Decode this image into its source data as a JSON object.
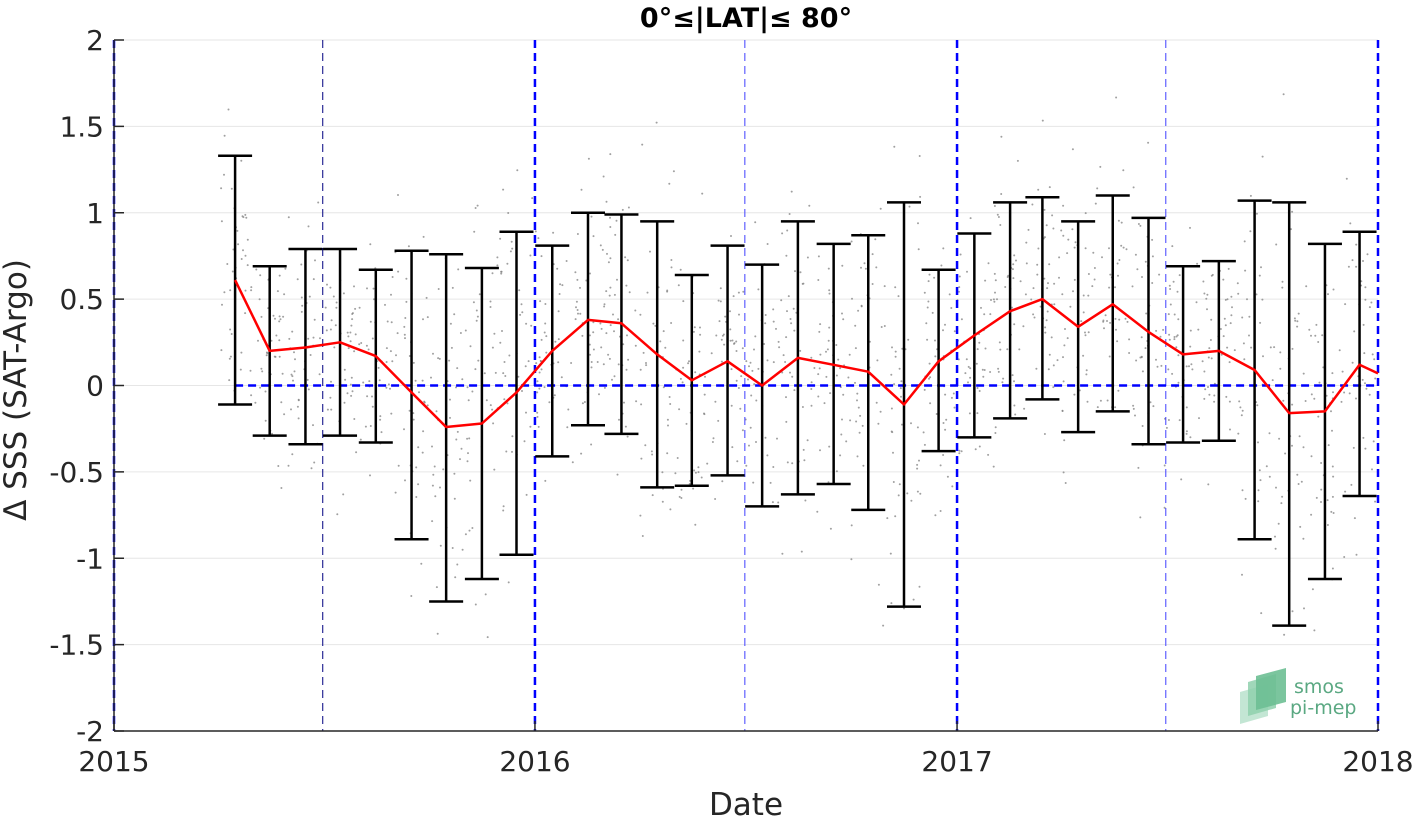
{
  "chart_data": {
    "type": "line",
    "title": "0°≤|LAT|≤ 80°",
    "xlabel": "Date",
    "ylabel": "Δ SSS (SAT-Argo)",
    "xlim": [
      "2015-01-01",
      "2018-01-01"
    ],
    "ylim": [
      -2,
      2
    ],
    "x_ticks": [
      "2015",
      "2016",
      "2017",
      "2018"
    ],
    "y_ticks": [
      "-2",
      "-1.5",
      "-1",
      "-0.5",
      "0",
      "0.5",
      "1",
      "1.5",
      "2"
    ],
    "grid": true,
    "series": [
      {
        "kind": "mean-with-error-bars",
        "color": "#ff0000",
        "errorbar_color": "#000000",
        "points": [
          {
            "x": "2015-04-16",
            "y": 0.61,
            "low": -0.11,
            "high": 1.33
          },
          {
            "x": "2015-05-16",
            "y": 0.2,
            "low": -0.29,
            "high": 0.69
          },
          {
            "x": "2015-06-16",
            "y": 0.22,
            "low": -0.34,
            "high": 0.79
          },
          {
            "x": "2015-07-16",
            "y": 0.25,
            "low": -0.29,
            "high": 0.79
          },
          {
            "x": "2015-08-16",
            "y": 0.17,
            "low": -0.33,
            "high": 0.67
          },
          {
            "x": "2015-09-16",
            "y": -0.04,
            "low": -0.89,
            "high": 0.78
          },
          {
            "x": "2015-10-16",
            "y": -0.24,
            "low": -1.25,
            "high": 0.76
          },
          {
            "x": "2015-11-16",
            "y": -0.22,
            "low": -1.12,
            "high": 0.68
          },
          {
            "x": "2015-12-16",
            "y": -0.04,
            "low": -0.98,
            "high": 0.89
          },
          {
            "x": "2016-01-16",
            "y": 0.2,
            "low": -0.41,
            "high": 0.81
          },
          {
            "x": "2016-02-16",
            "y": 0.38,
            "low": -0.23,
            "high": 1.0
          },
          {
            "x": "2016-03-16",
            "y": 0.36,
            "low": -0.28,
            "high": 0.99
          },
          {
            "x": "2016-04-16",
            "y": 0.18,
            "low": -0.59,
            "high": 0.95
          },
          {
            "x": "2016-05-16",
            "y": 0.03,
            "low": -0.58,
            "high": 0.64
          },
          {
            "x": "2016-06-16",
            "y": 0.14,
            "low": -0.52,
            "high": 0.81
          },
          {
            "x": "2016-07-16",
            "y": 0.0,
            "low": -0.7,
            "high": 0.7
          },
          {
            "x": "2016-08-16",
            "y": 0.16,
            "low": -0.63,
            "high": 0.95
          },
          {
            "x": "2016-09-16",
            "y": 0.12,
            "low": -0.57,
            "high": 0.82
          },
          {
            "x": "2016-10-16",
            "y": 0.08,
            "low": -0.72,
            "high": 0.87
          },
          {
            "x": "2016-11-16",
            "y": -0.11,
            "low": -1.28,
            "high": 1.06
          },
          {
            "x": "2016-12-16",
            "y": 0.14,
            "low": -0.38,
            "high": 0.67
          },
          {
            "x": "2017-01-16",
            "y": 0.29,
            "low": -0.3,
            "high": 0.88
          },
          {
            "x": "2017-02-16",
            "y": 0.43,
            "low": -0.19,
            "high": 1.06
          },
          {
            "x": "2017-03-16",
            "y": 0.5,
            "low": -0.08,
            "high": 1.09
          },
          {
            "x": "2017-04-16",
            "y": 0.34,
            "low": -0.27,
            "high": 0.95
          },
          {
            "x": "2017-05-16",
            "y": 0.47,
            "low": -0.15,
            "high": 1.1
          },
          {
            "x": "2017-06-16",
            "y": 0.31,
            "low": -0.34,
            "high": 0.97
          },
          {
            "x": "2017-07-16",
            "y": 0.18,
            "low": -0.33,
            "high": 0.69
          },
          {
            "x": "2017-08-16",
            "y": 0.2,
            "low": -0.32,
            "high": 0.72
          },
          {
            "x": "2017-09-16",
            "y": 0.09,
            "low": -0.89,
            "high": 1.07
          },
          {
            "x": "2017-10-16",
            "y": -0.16,
            "low": -1.39,
            "high": 1.06
          },
          {
            "x": "2017-11-16",
            "y": -0.15,
            "low": -1.12,
            "high": 0.82
          },
          {
            "x": "2017-12-16",
            "y": 0.12,
            "low": -0.64,
            "high": 0.89
          },
          {
            "x": "2018-01-01",
            "y": 0.07
          }
        ]
      }
    ],
    "reference_lines": {
      "zero_line": {
        "y": 0,
        "color": "#0000ff",
        "style": "dashed"
      },
      "year_lines": {
        "x": [
          "2015-01-01",
          "2016-01-01",
          "2017-01-01",
          "2018-01-01"
        ],
        "color": "#0000ff",
        "style": "dashed"
      },
      "midyear_lines": [
        {
          "x": "2015-07-01",
          "color": "#000080",
          "style": "dashed"
        },
        {
          "x": "2016-07-01",
          "color": "#4040ff",
          "style": "dashed"
        },
        {
          "x": "2017-07-01",
          "color": "#4040ff",
          "style": "dashed"
        }
      ]
    },
    "scatter_background": {
      "color": "#808080",
      "description_type": "individual match-up points"
    }
  },
  "logo": {
    "line1": "smos",
    "line2": "pi-mep",
    "color": "#5aa882"
  }
}
